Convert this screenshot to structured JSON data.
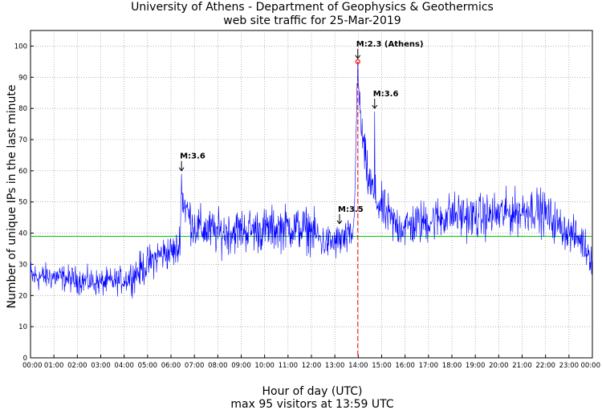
{
  "chart_data": {
    "type": "line",
    "title": "University of Athens - Department of Geophysics & Geothermics",
    "subtitle": "web site traffic for 25-Mar-2019",
    "xlabel": "Hour of day (UTC)",
    "ylabel": "Number of unique IPs in the last minute",
    "footer": "max 95 visitors at 13:59 UTC",
    "xlim": [
      0,
      24
    ],
    "ylim": [
      0,
      105
    ],
    "x_tick_labels": [
      "00:00",
      "01:00",
      "02:00",
      "03:00",
      "04:00",
      "05:00",
      "06:00",
      "07:00",
      "08:00",
      "09:00",
      "10:00",
      "11:00",
      "12:00",
      "13:00",
      "14:00",
      "15:00",
      "16:00",
      "17:00",
      "18:00",
      "19:00",
      "20:00",
      "21:00",
      "22:00",
      "23:00",
      "00:00"
    ],
    "y_ticks": [
      0,
      10,
      20,
      30,
      40,
      50,
      60,
      70,
      80,
      90,
      100
    ],
    "grid": true,
    "series": [
      {
        "color": "#0000ff",
        "profile": [
          [
            0.0,
            26,
            4
          ],
          [
            0.5,
            26,
            3
          ],
          [
            1.0,
            26,
            3
          ],
          [
            2.0,
            25,
            3
          ],
          [
            3.0,
            24,
            3
          ],
          [
            4.0,
            25,
            3
          ],
          [
            4.5,
            27,
            4
          ],
          [
            5.0,
            30,
            4
          ],
          [
            5.5,
            33,
            4
          ],
          [
            6.0,
            34,
            4
          ],
          [
            6.35,
            35,
            4
          ],
          [
            6.45,
            52,
            5
          ],
          [
            6.8,
            45,
            5
          ],
          [
            7.0,
            42,
            5
          ],
          [
            8.0,
            40,
            5
          ],
          [
            9.0,
            41,
            5
          ],
          [
            10.0,
            41,
            5
          ],
          [
            11.0,
            42,
            5
          ],
          [
            12.0,
            41,
            5
          ],
          [
            12.5,
            37,
            4
          ],
          [
            13.0,
            37,
            4
          ],
          [
            13.5,
            38,
            4
          ],
          [
            13.8,
            40,
            4
          ],
          [
            13.9,
            70,
            5
          ],
          [
            13.98,
            90,
            3
          ],
          [
            14.15,
            72,
            5
          ],
          [
            14.4,
            58,
            5
          ],
          [
            14.8,
            50,
            5
          ],
          [
            15.0,
            48,
            5
          ],
          [
            15.5,
            43,
            5
          ],
          [
            16.0,
            42,
            5
          ],
          [
            17.0,
            44,
            5
          ],
          [
            18.0,
            46,
            5
          ],
          [
            19.0,
            45,
            5
          ],
          [
            20.0,
            46,
            5
          ],
          [
            21.0,
            47,
            5
          ],
          [
            21.5,
            48,
            5
          ],
          [
            22.0,
            46,
            5
          ],
          [
            23.0,
            40,
            4
          ],
          [
            23.5,
            38,
            4
          ],
          [
            24.0,
            32,
            4
          ]
        ],
        "spikes": [
          [
            6.45,
            59
          ],
          [
            13.98,
            95
          ],
          [
            14.7,
            79
          ],
          [
            13.3,
            41
          ]
        ]
      }
    ],
    "max_marker": {
      "x": 13.98,
      "y": 95,
      "color": "#ff0000"
    },
    "average_line": {
      "y": 39,
      "color": "#00cc00"
    },
    "vertical_line": {
      "x": 13.98,
      "color": "#ff0000"
    },
    "annotations": [
      {
        "text": "M:3.6",
        "x": 6.45,
        "y": 59
      },
      {
        "text": "M:3.5",
        "x": 13.2,
        "y": 42
      },
      {
        "text": "M:2.3 (Athens)",
        "x": 13.98,
        "y": 95
      },
      {
        "text": "M:3.6",
        "x": 14.7,
        "y": 79
      }
    ]
  }
}
